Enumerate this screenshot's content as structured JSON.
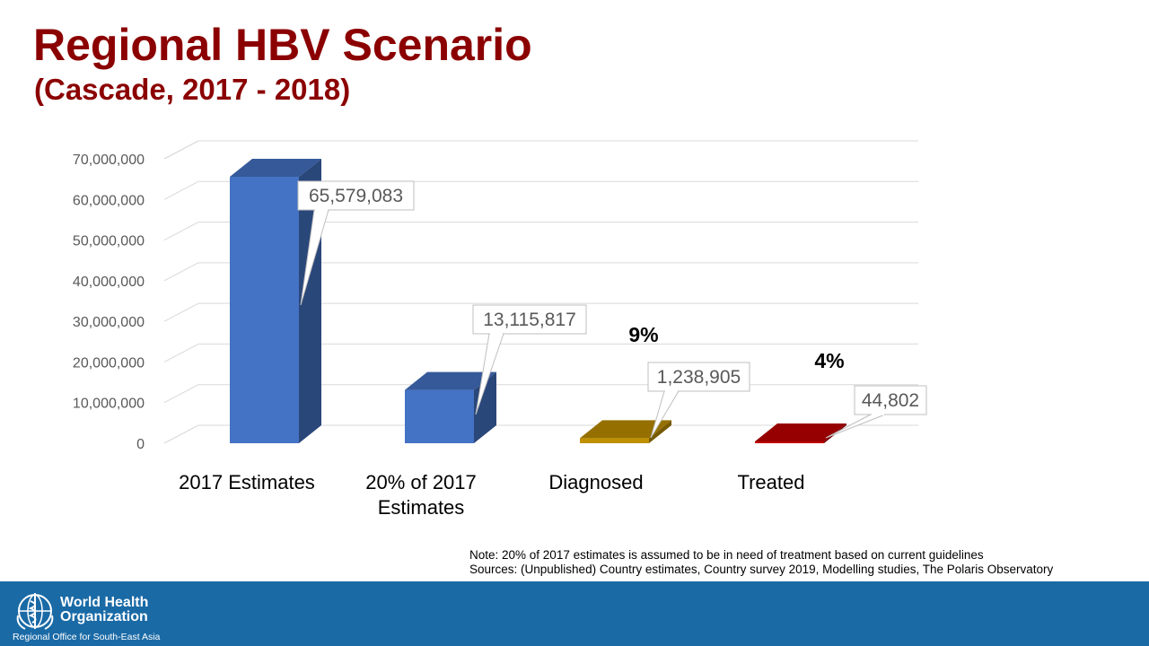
{
  "header": {
    "title": "Regional HBV Scenario",
    "subtitle": "(Cascade, 2017 - 2018)"
  },
  "chart_data": {
    "type": "bar",
    "categories": [
      [
        "2017 Estimates"
      ],
      [
        "20% of 2017",
        "Estimates"
      ],
      [
        "Diagnosed"
      ],
      [
        "Treated"
      ]
    ],
    "values": [
      65579083,
      13115817,
      1238905,
      44802
    ],
    "data_labels": [
      "65,579,083",
      "13,115,817",
      "1,238,905",
      "44,802"
    ],
    "percent_annotations": [
      {
        "category_index": 2,
        "text": "9%"
      },
      {
        "category_index": 3,
        "text": "4%"
      }
    ],
    "bar_colors": [
      "#4472c4",
      "#4472c4",
      "#bf9000",
      "#c00000"
    ],
    "ylim": [
      0,
      70000000
    ],
    "yticks": [
      0,
      10000000,
      20000000,
      30000000,
      40000000,
      50000000,
      60000000,
      70000000
    ],
    "ytick_labels": [
      "0",
      "10,000,000",
      "20,000,000",
      "30,000,000",
      "40,000,000",
      "50,000,000",
      "60,000,000",
      "70,000,000"
    ],
    "grid": true,
    "style": "3d"
  },
  "notes": {
    "line1": "Note: 20% of 2017 estimates is assumed to be in need of treatment based on current guidelines",
    "line2": "Sources: (Unpublished) Country estimates, Country survey 2019, Modelling  studies, The Polaris Observatory"
  },
  "footer": {
    "org_line1": "World Health",
    "org_line2": "Organization",
    "office": "Regional Office for South-East Asia",
    "background": "#1a6aa6",
    "logo": "who-emblem-icon"
  }
}
